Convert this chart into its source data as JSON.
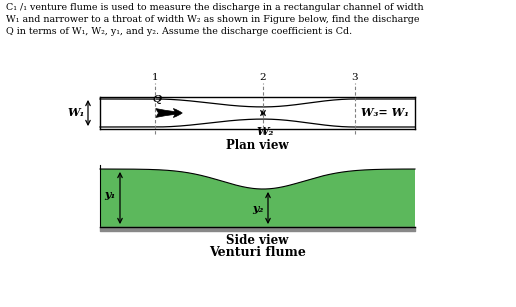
{
  "title_text": "C₁ /₁ venture flume is used to measure the discharge in a rectangular channel of width\nW₁ and narrower to a throat of width W₂ as shown in Figure below, find the discharge\nQ in terms of W₁, W₂, y₁, and y₂. Assume the discharge coefficient is Cd.",
  "plan_label": "Plan view",
  "side_label": "Side view",
  "venturi_label": "Venturi flume",
  "bg_color": "#ffffff",
  "green_color": "#5cb85c",
  "section_numbers": [
    "1",
    "2",
    "3"
  ],
  "W1_label": "W₁",
  "W2_label": "W₂",
  "W3_label": "W₃= W₁",
  "Q_label": "Q",
  "y1_label": "y₁",
  "y2_label": "y₂",
  "fig_w": 5.16,
  "fig_h": 3.07,
  "dpi": 100
}
